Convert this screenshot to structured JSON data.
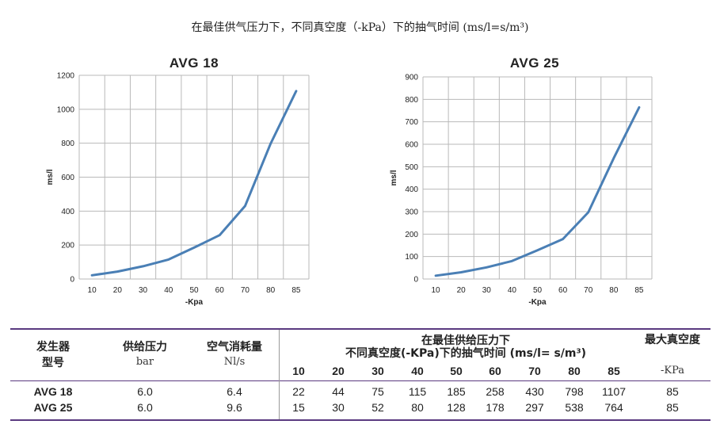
{
  "page_title": "在最佳供气压力下，不同真空度（-kPa）下的抽气时间 (ms/l=s/m³)",
  "chart_data": [
    {
      "type": "line",
      "title": "AVG 18",
      "xlabel": "-Kpa",
      "ylabel": "ms/l",
      "categories": [
        "10",
        "20",
        "30",
        "40",
        "50",
        "60",
        "70",
        "80",
        "85"
      ],
      "series": [
        {
          "values": [
            22,
            44,
            75,
            115,
            185,
            258,
            430,
            798,
            1107
          ]
        }
      ],
      "ylim": [
        0,
        1200
      ],
      "yticks": [
        0,
        200,
        400,
        600,
        800,
        1000,
        1200
      ],
      "grid": true,
      "line_color": "#4a7fb5"
    },
    {
      "type": "line",
      "title": "AVG 25",
      "xlabel": "-Kpa",
      "ylabel": "ms/l",
      "categories": [
        "10",
        "20",
        "30",
        "40",
        "50",
        "60",
        "70",
        "80",
        "85"
      ],
      "series": [
        {
          "values": [
            15,
            30,
            52,
            80,
            128,
            178,
            297,
            538,
            764
          ]
        }
      ],
      "ylim": [
        0,
        900
      ],
      "yticks": [
        0,
        100,
        200,
        300,
        400,
        500,
        600,
        700,
        800,
        900
      ],
      "grid": true,
      "line_color": "#4a7fb5"
    }
  ],
  "table": {
    "col_generator": [
      "发生器",
      "型号"
    ],
    "col_pressure": [
      "供给压力",
      "bar"
    ],
    "col_air": [
      "空气消耗量",
      "Nl/s"
    ],
    "col_time": [
      "在最佳供给压力下",
      "不同真空度(-KPa)下的抽气时间 (ms/l= s/m³)"
    ],
    "col_maxvac": [
      "最大真空度",
      "-KPa"
    ],
    "vacuum_levels": [
      "10",
      "20",
      "30",
      "40",
      "50",
      "60",
      "70",
      "80",
      "85"
    ],
    "rows": [
      {
        "model": "AVG 18",
        "pressure": "6.0",
        "air": "6.4",
        "times": [
          "22",
          "44",
          "75",
          "115",
          "185",
          "258",
          "430",
          "798",
          "1107"
        ],
        "max": "85"
      },
      {
        "model": "AVG 25",
        "pressure": "6.0",
        "air": "9.6",
        "times": [
          "15",
          "30",
          "52",
          "80",
          "128",
          "178",
          "297",
          "538",
          "764"
        ],
        "max": "85"
      }
    ]
  }
}
